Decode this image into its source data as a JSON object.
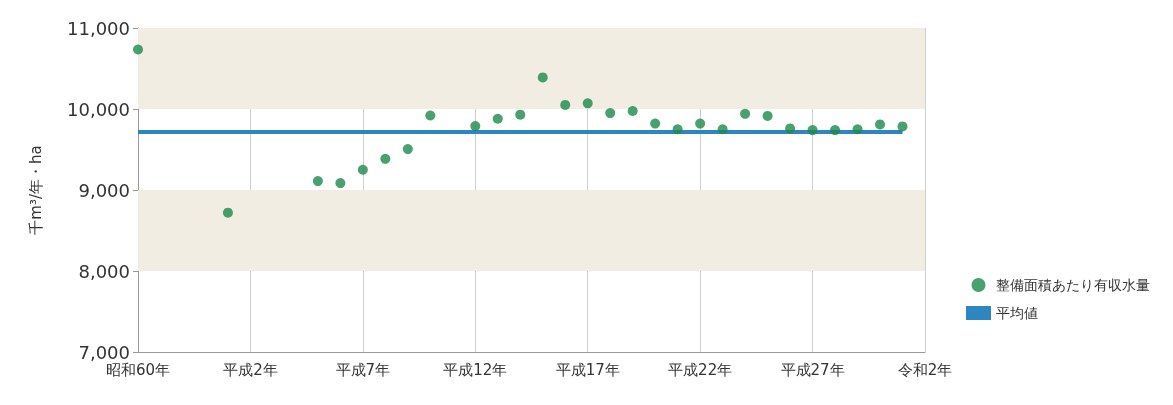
{
  "chart_data": {
    "type": "scatter",
    "ylabel": "千m³/年・ha",
    "categories": [
      "昭和60年",
      null,
      null,
      null,
      null,
      "平成2年",
      null,
      null,
      null,
      null,
      "平成7年",
      null,
      null,
      null,
      null,
      "平成12年",
      null,
      null,
      null,
      null,
      "平成17年",
      null,
      null,
      null,
      null,
      "平成22年",
      null,
      null,
      null,
      null,
      "平成27年",
      null,
      null,
      null,
      null,
      "令和2年"
    ],
    "series": [
      {
        "name": "整備面積あたり有収水量",
        "color": "#1a8a4a",
        "values": [
          10735,
          null,
          null,
          null,
          8720,
          null,
          null,
          null,
          9110,
          9085,
          9250,
          9385,
          9505,
          9920,
          null,
          9790,
          9880,
          9930,
          10390,
          10050,
          10070,
          9950,
          9975,
          9820,
          9750,
          9820,
          9750,
          9940,
          9915,
          9760,
          9740,
          9740,
          9750,
          9810,
          9785,
          null
        ]
      }
    ],
    "ylim": [
      7000,
      11000
    ],
    "yticks": [
      {
        "value": 7000,
        "label": "7,000"
      },
      {
        "value": 8000,
        "label": "8,000"
      },
      {
        "value": 9000,
        "label": "9,000"
      },
      {
        "value": 10000,
        "label": "10,000"
      },
      {
        "value": 11000,
        "label": "11,000"
      }
    ],
    "ref_lines": [
      {
        "axis": "y",
        "value": 9715,
        "label": "平均値",
        "color": "#2e86c1"
      }
    ],
    "bands": [
      {
        "axis": "y",
        "from": 10000,
        "to": 11000,
        "color": "#f1ede2"
      },
      {
        "axis": "y",
        "from": 8000,
        "to": 9000,
        "color": "#f1ede2"
      }
    ],
    "grid": "x",
    "legend": "bottom right",
    "marker": "circle"
  }
}
